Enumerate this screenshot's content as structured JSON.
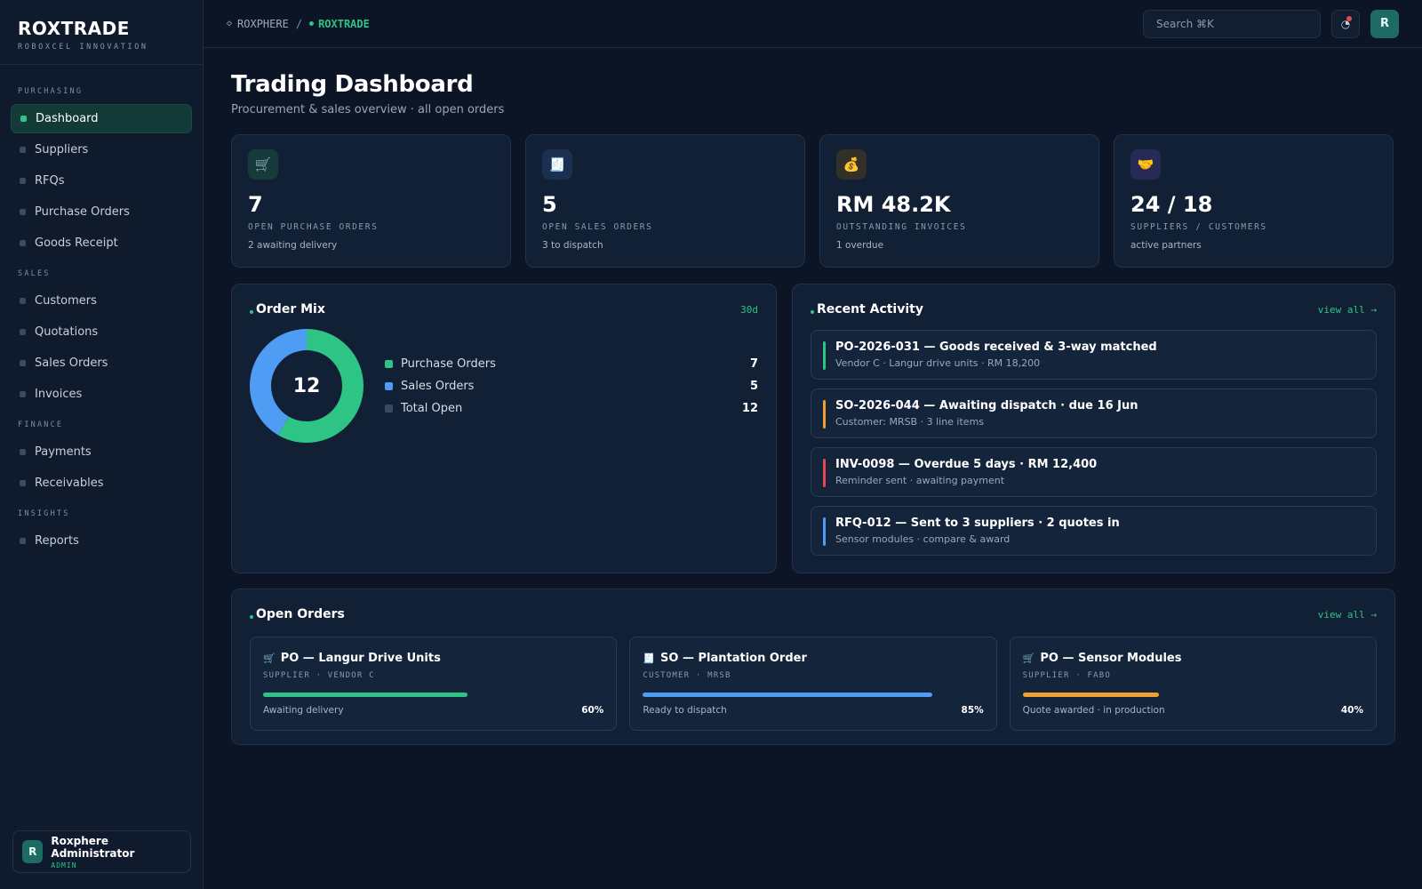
{
  "brand": {
    "name": "ROXTRADE",
    "subtitle": "ROBOXCEL INNOVATION"
  },
  "sidebar": {
    "sections": [
      {
        "title": "PURCHASING",
        "items": [
          {
            "label": "Dashboard",
            "active": true
          },
          {
            "label": "Suppliers"
          },
          {
            "label": "RFQs"
          },
          {
            "label": "Purchase Orders"
          },
          {
            "label": "Goods Receipt"
          }
        ]
      },
      {
        "title": "SALES",
        "items": [
          {
            "label": "Customers"
          },
          {
            "label": "Quotations"
          },
          {
            "label": "Sales Orders"
          },
          {
            "label": "Invoices"
          }
        ]
      },
      {
        "title": "FINANCE",
        "items": [
          {
            "label": "Payments"
          },
          {
            "label": "Receivables"
          }
        ]
      },
      {
        "title": "INSIGHTS",
        "items": [
          {
            "label": "Reports"
          }
        ]
      }
    ],
    "user": {
      "initial": "R",
      "name": "Roxphere Administrator",
      "role": "ADMIN"
    }
  },
  "topbar": {
    "breadcrumb_root": "ROXPHERE",
    "breadcrumb_sep": "/",
    "breadcrumb_current": "ROXTRADE",
    "search_placeholder": "Search ⌘K",
    "avatar_initial": "R"
  },
  "page": {
    "title": "Trading Dashboard",
    "subtitle": "Procurement & sales overview · all open orders"
  },
  "stats": [
    {
      "icon": "cart-icon",
      "glyph": "🛒",
      "value": "7",
      "label": "OPEN PURCHASE ORDERS",
      "note": "2 awaiting delivery",
      "icon_bg": "#173a3a"
    },
    {
      "icon": "receipt-icon",
      "glyph": "🧾",
      "value": "5",
      "label": "OPEN SALES ORDERS",
      "note": "3 to dispatch",
      "icon_bg": "#1b3050"
    },
    {
      "icon": "money-bag-icon",
      "glyph": "💰",
      "value": "RM 48.2K",
      "label": "OUTSTANDING INVOICES",
      "note": "1 overdue",
      "icon_bg": "#33302a"
    },
    {
      "icon": "handshake-icon",
      "glyph": "🤝",
      "value": "24 / 18",
      "label": "SUPPLIERS / CUSTOMERS",
      "note": "active partners",
      "icon_bg": "#262a55"
    }
  ],
  "order_mix": {
    "title": "Order Mix",
    "range": "30d",
    "center_value": "12",
    "legend": [
      {
        "label": "Purchase Orders",
        "value": "7",
        "color": "#2ec486"
      },
      {
        "label": "Sales Orders",
        "value": "5",
        "color": "#4f9cf5"
      },
      {
        "label": "Total Open",
        "value": "12",
        "color": "#3a4a60"
      }
    ]
  },
  "chart_data": {
    "type": "pie",
    "categories": [
      "Purchase Orders",
      "Sales Orders"
    ],
    "values": [
      7,
      5
    ],
    "colors": [
      "#2ec486",
      "#4f9cf5"
    ],
    "total": 12
  },
  "activity": {
    "title": "Recent Activity",
    "link": "view all →",
    "items": [
      {
        "title": "PO-2026-031 — Goods received & 3-way matched",
        "sub": "Vendor C · Langur drive units · RM 18,200",
        "color": "#2ec486"
      },
      {
        "title": "SO-2026-044 — Awaiting dispatch · due 16 Jun",
        "sub": "Customer: MRSB · 3 line items",
        "color": "#f0a030"
      },
      {
        "title": "INV-0098 — Overdue 5 days · RM 12,400",
        "sub": "Reminder sent · awaiting payment",
        "color": "#e5484d"
      },
      {
        "title": "RFQ-012 — Sent to 3 suppliers · 2 quotes in",
        "sub": "Sensor modules · compare & award",
        "color": "#4f9cf5"
      }
    ]
  },
  "open_orders": {
    "title": "Open Orders",
    "link": "view all →",
    "items": [
      {
        "icon": "cart-icon",
        "glyph": "🛒",
        "title": "PO — Langur Drive Units",
        "meta": "SUPPLIER · VENDOR C",
        "status": "Awaiting delivery",
        "pct_label": "60%",
        "progress": 0.6,
        "color": "#2ec486"
      },
      {
        "icon": "receipt-icon",
        "glyph": "🧾",
        "title": "SO — Plantation Order",
        "meta": "CUSTOMER · MRSB",
        "status": "Ready to dispatch",
        "pct_label": "85%",
        "progress": 0.85,
        "color": "#4f9cf5"
      },
      {
        "icon": "cart-icon",
        "glyph": "🛒",
        "title": "PO — Sensor Modules",
        "meta": "SUPPLIER · FABO",
        "status": "Quote awarded · in production",
        "pct_label": "40%",
        "progress": 0.4,
        "color": "#f0a030"
      }
    ]
  }
}
